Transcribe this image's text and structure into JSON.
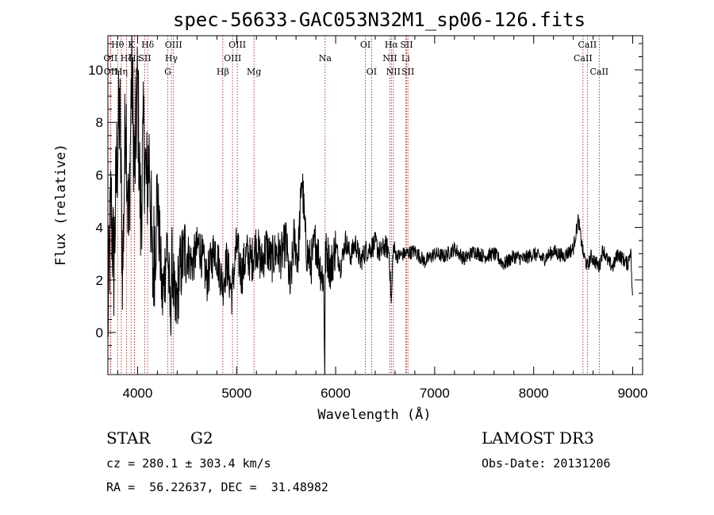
{
  "chart_data": {
    "type": "line",
    "title": "spec-56633-GAC053N32M1_sp06-126.fits",
    "xlabel": "Wavelength (Å)",
    "ylabel": "Flux (relative)",
    "xlim": [
      3700,
      9100
    ],
    "ylim": [
      -1.6,
      11.3
    ],
    "xticks": [
      4000,
      5000,
      6000,
      7000,
      8000,
      9000
    ],
    "yticks": [
      0,
      2,
      4,
      6,
      8,
      10
    ],
    "series": [
      {
        "name": "spectrum",
        "x": [
          3700,
          3730,
          3760,
          3790,
          3820,
          3850,
          3880,
          3910,
          3940,
          3970,
          4000,
          4030,
          4060,
          4090,
          4120,
          4150,
          4200,
          4250,
          4300,
          4330,
          4350,
          4380,
          4420,
          4480,
          4550,
          4620,
          4700,
          4780,
          4860,
          4900,
          4950,
          5000,
          5050,
          5100,
          5150,
          5200,
          5250,
          5300,
          5350,
          5400,
          5450,
          5500,
          5540,
          5580,
          5620,
          5660,
          5700,
          5750,
          5800,
          5850,
          5880,
          5890,
          5896,
          5910,
          5950,
          6000,
          6050,
          6100,
          6150,
          6200,
          6250,
          6300,
          6350,
          6400,
          6450,
          6500,
          6540,
          6563,
          6580,
          6620,
          6700,
          6800,
          6900,
          7000,
          7100,
          7200,
          7300,
          7400,
          7500,
          7600,
          7700,
          7800,
          7900,
          8000,
          8100,
          8200,
          8300,
          8400,
          8450,
          8500,
          8542,
          8580,
          8620,
          8662,
          8700,
          8750,
          8800,
          8850,
          8900,
          8950,
          8980,
          9000
        ],
        "y": [
          0.3,
          5.0,
          2.5,
          6.5,
          8.5,
          2.2,
          9.0,
          3.5,
          10.2,
          6.0,
          9.5,
          4.2,
          7.5,
          5.5,
          6.8,
          2.0,
          5.2,
          1.2,
          3.5,
          0.6,
          2.8,
          0.5,
          2.2,
          3.2,
          2.6,
          3.4,
          2.0,
          3.3,
          1.8,
          2.7,
          1.5,
          3.3,
          2.2,
          3.0,
          2.7,
          3.4,
          2.6,
          3.3,
          2.7,
          3.1,
          2.9,
          3.5,
          1.6,
          3.6,
          2.8,
          6.0,
          3.2,
          2.6,
          3.5,
          2.4,
          2.0,
          -1.6,
          2.8,
          3.1,
          2.4,
          3.3,
          2.5,
          3.5,
          2.9,
          3.4,
          2.7,
          3.1,
          3.2,
          3.4,
          3.0,
          3.3,
          3.1,
          1.0,
          3.2,
          2.9,
          3.0,
          3.1,
          2.7,
          3.0,
          2.9,
          3.2,
          2.8,
          3.1,
          2.9,
          3.0,
          2.6,
          2.9,
          2.8,
          3.0,
          2.8,
          3.1,
          2.9,
          3.2,
          4.3,
          3.0,
          2.5,
          2.9,
          2.7,
          2.5,
          3.2,
          2.7,
          2.5,
          3.0,
          2.8,
          2.6,
          3.2,
          1.0
        ]
      }
    ],
    "lines": [
      {
        "name": "OII",
        "wavelength": 3727,
        "row": 2
      },
      {
        "name": "OII",
        "wavelength": 3729,
        "row": 3
      },
      {
        "name": "Hθ",
        "wavelength": 3798,
        "row": 1
      },
      {
        "name": "Hη",
        "wavelength": 3835,
        "row": 3
      },
      {
        "name": "Hζ",
        "wavelength": 3889,
        "row": 2
      },
      {
        "name": "K",
        "wavelength": 3934,
        "row": 1
      },
      {
        "name": "H",
        "wavelength": 3969,
        "row": 3
      },
      {
        "name": "Hε",
        "wavelength": 3970,
        "row": 2
      },
      {
        "name": "SII",
        "wavelength": 4072,
        "row": 2
      },
      {
        "name": "Hδ",
        "wavelength": 4102,
        "row": 1
      },
      {
        "name": "G",
        "wavelength": 4305,
        "row": 3
      },
      {
        "name": "Hγ",
        "wavelength": 4341,
        "row": 2
      },
      {
        "name": "OIII",
        "wavelength": 4363,
        "row": 1
      },
      {
        "name": "Hβ",
        "wavelength": 4861,
        "row": 3
      },
      {
        "name": "OIII",
        "wavelength": 4959,
        "row": 2
      },
      {
        "name": "OIII",
        "wavelength": 5007,
        "row": 1
      },
      {
        "name": "Mg",
        "wavelength": 5175,
        "row": 3
      },
      {
        "name": "Na",
        "wavelength": 5894,
        "row": 2
      },
      {
        "name": "OI",
        "wavelength": 6300,
        "row": 1
      },
      {
        "name": "OI",
        "wavelength": 6363,
        "row": 3
      },
      {
        "name": "NII",
        "wavelength": 6548,
        "row": 2
      },
      {
        "name": "Hα",
        "wavelength": 6563,
        "row": 1
      },
      {
        "name": "NII",
        "wavelength": 6583,
        "row": 3
      },
      {
        "name": "Li",
        "wavelength": 6707,
        "row": 2
      },
      {
        "name": "SII",
        "wavelength": 6716,
        "row": 1
      },
      {
        "name": "SII",
        "wavelength": 6730,
        "row": 3
      },
      {
        "name": "CaII",
        "wavelength": 8498,
        "row": 2
      },
      {
        "name": "CaII",
        "wavelength": 8542,
        "row": 1
      },
      {
        "name": "CaII",
        "wavelength": 8662,
        "row": 3
      }
    ]
  },
  "info": {
    "object_class": "STAR",
    "subclass": "G2",
    "survey": "LAMOST DR3",
    "redshift": "cz = 280.1 ± 303.4 km/s",
    "obs_date": "Obs-Date: 20131206",
    "coords": "RA =  56.22637, DEC =  31.48982"
  },
  "colors": {
    "line_marker": "#a01010",
    "spectrum": "#000000",
    "axes": "#000000"
  }
}
